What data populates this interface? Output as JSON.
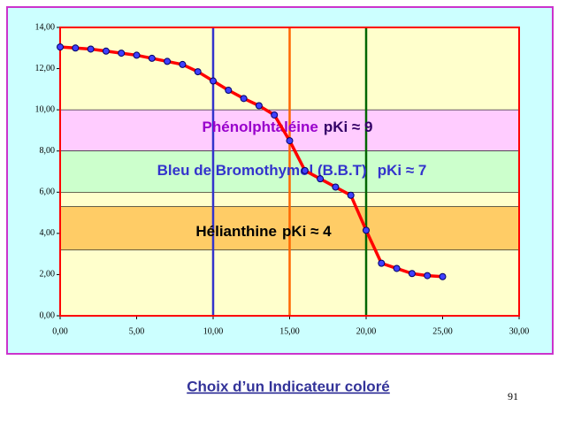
{
  "chart_data": {
    "type": "line",
    "title": "Choix d’un Indicateur coloré",
    "page_number": "91",
    "x": [
      0,
      1,
      2,
      3,
      4,
      5,
      6,
      7,
      8,
      9,
      10,
      11,
      12,
      13,
      14,
      15,
      16,
      17,
      18,
      19,
      20,
      21,
      22,
      23,
      24,
      25
    ],
    "values": [
      13.05,
      13.0,
      12.95,
      12.85,
      12.75,
      12.65,
      12.5,
      12.35,
      12.2,
      11.85,
      11.4,
      10.95,
      10.55,
      10.2,
      9.75,
      8.5,
      7.05,
      6.65,
      6.25,
      5.85,
      4.15,
      2.55,
      2.3,
      2.05,
      1.95,
      1.9
    ],
    "color": "#ff0000",
    "marker_color": "#4040ff",
    "xlim": [
      0,
      30
    ],
    "ylim": [
      0,
      14
    ],
    "xticks": [
      {
        "value": 0,
        "label": "0,00"
      },
      {
        "value": 5,
        "label": "5,00"
      },
      {
        "value": 10,
        "label": "10,00"
      },
      {
        "value": 15,
        "label": "15,00"
      },
      {
        "value": 20,
        "label": "20,00"
      },
      {
        "value": 25,
        "label": "25,00"
      },
      {
        "value": 30,
        "label": "30,00"
      }
    ],
    "yticks": [
      {
        "value": 0,
        "label": "0,00"
      },
      {
        "value": 2,
        "label": "2,00"
      },
      {
        "value": 4,
        "label": "4,00"
      },
      {
        "value": 6,
        "label": "6,00"
      },
      {
        "value": 8,
        "label": "8,00"
      },
      {
        "value": 10,
        "label": "10,00"
      },
      {
        "value": 12,
        "label": "12,00"
      },
      {
        "value": 14,
        "label": "14,00"
      }
    ],
    "bands": [
      {
        "from": 8,
        "to": 10,
        "color": "#ffccff",
        "name": "Phénolphtaléine",
        "name_color": "#9900cc",
        "pki": "pKi ≈ 9",
        "pki_color": "#330066"
      },
      {
        "from": 6,
        "to": 8,
        "color": "#ccffcc",
        "name": "Bleu de Bromothymol (B.B.T)",
        "name_color": "#3333cc",
        "pki": "pKi ≈ 7",
        "pki_color": "#3333cc"
      },
      {
        "from": 3.2,
        "to": 5.3,
        "color": "#ffcc66",
        "name": "Hélianthine",
        "name_color": "#000000",
        "pki": "pKi ≈ 4",
        "pki_color": "#000000"
      }
    ],
    "vlines": [
      {
        "x": 10,
        "color": "#3333cc"
      },
      {
        "x": 15,
        "color": "#ff6600"
      },
      {
        "x": 20,
        "color": "#006600"
      }
    ]
  }
}
